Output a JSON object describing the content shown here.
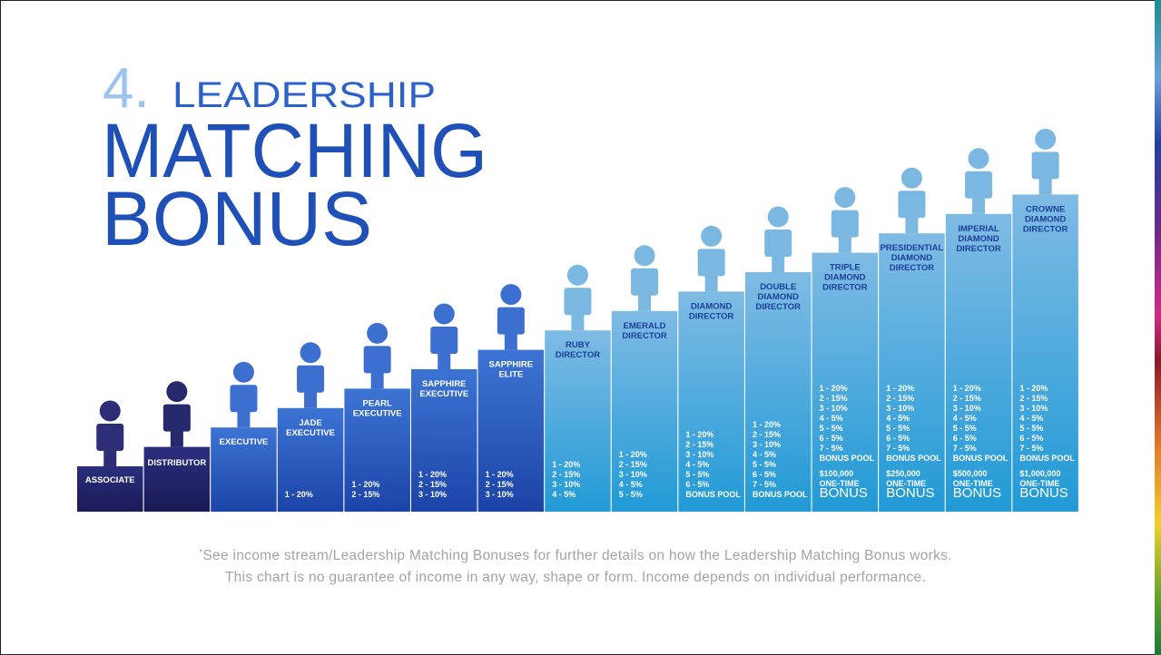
{
  "header": {
    "number": "4.",
    "line1": "LEADERSHIP",
    "line2": "MATCHING",
    "line3": "BONUS"
  },
  "ranks": [
    {
      "name": [
        "ASSOCIATE"
      ],
      "lines": []
    },
    {
      "name": [
        "DISTRIBUTOR"
      ],
      "lines": []
    },
    {
      "name": [
        "EXECUTIVE"
      ],
      "lines": []
    },
    {
      "name": [
        "JADE",
        "EXECUTIVE"
      ],
      "lines": [
        "1 - 20%"
      ]
    },
    {
      "name": [
        "PEARL",
        "EXECUTIVE"
      ],
      "lines": [
        "1 - 20%",
        "2 - 15%"
      ]
    },
    {
      "name": [
        "SAPPHIRE",
        "EXECUTIVE"
      ],
      "lines": [
        "1 - 20%",
        "2 - 15%",
        "3 - 10%"
      ]
    },
    {
      "name": [
        "SAPPHIRE",
        "ELITE"
      ],
      "lines": [
        "1 - 20%",
        "2 - 15%",
        "3 - 10%"
      ]
    },
    {
      "name": [
        "RUBY",
        "DIRECTOR"
      ],
      "lines": [
        "1 - 20%",
        "2 - 15%",
        "3 - 10%",
        "4 - 5%"
      ]
    },
    {
      "name": [
        "EMERALD",
        "DIRECTOR"
      ],
      "lines": [
        "1 - 20%",
        "2 - 15%",
        "3 - 10%",
        "4 - 5%",
        "5 - 5%"
      ]
    },
    {
      "name": [
        "DIAMOND",
        "DIRECTOR"
      ],
      "lines": [
        "1 - 20%",
        "2 - 15%",
        "3 - 10%",
        "4 - 5%",
        "5 - 5%",
        "6 - 5%",
        "BONUS POOL"
      ]
    },
    {
      "name": [
        "DOUBLE",
        "DIAMOND",
        "DIRECTOR"
      ],
      "lines": [
        "1 - 20%",
        "2 - 15%",
        "3 - 10%",
        "4 - 5%",
        "5 - 5%",
        "6 - 5%",
        "7 - 5%",
        "BONUS POOL"
      ]
    },
    {
      "name": [
        "TRIPLE",
        "DIAMOND",
        "DIRECTOR"
      ],
      "lines": [
        "1 - 20%",
        "2 - 15%",
        "3 - 10%",
        "4 - 5%",
        "5 - 5%",
        "6 - 5%",
        "7 - 5%",
        "BONUS POOL"
      ],
      "amount": "$100,000",
      "one_time": "ONE-TIME",
      "bonus": "BONUS"
    },
    {
      "name": [
        "PRESIDENTIAL",
        "DIAMOND",
        "DIRECTOR"
      ],
      "lines": [
        "1 - 20%",
        "2 - 15%",
        "3 - 10%",
        "4 - 5%",
        "5 - 5%",
        "6 - 5%",
        "7 - 5%",
        "BONUS POOL"
      ],
      "amount": "$250,000",
      "one_time": "ONE-TIME",
      "bonus": "BONUS"
    },
    {
      "name": [
        "IMPERIAL",
        "DIAMOND",
        "DIRECTOR"
      ],
      "lines": [
        "1 - 20%",
        "2 - 15%",
        "3 - 10%",
        "4 - 5%",
        "5 - 5%",
        "6 - 5%",
        "7 - 5%",
        "BONUS POOL"
      ],
      "amount": "$500,000",
      "one_time": "ONE-TIME",
      "bonus": "BONUS"
    },
    {
      "name": [
        "CROWNE",
        "DIAMOND",
        "DIRECTOR"
      ],
      "lines": [
        "1 - 20%",
        "2 - 15%",
        "3 - 10%",
        "4 - 5%",
        "5 - 5%",
        "6 - 5%",
        "7 - 5%",
        "BONUS POOL"
      ],
      "amount": "$1,000,000",
      "one_time": "ONE-TIME",
      "bonus": "BONUS"
    }
  ],
  "footnote": {
    "marker": "*",
    "line1": "See income stream/Leadership Matching Bonuses for further details on how the Leadership Matching Bonus works.",
    "line2": "This chart is no guarantee of income in any way, shape or form. Income depends on individual performance."
  }
}
